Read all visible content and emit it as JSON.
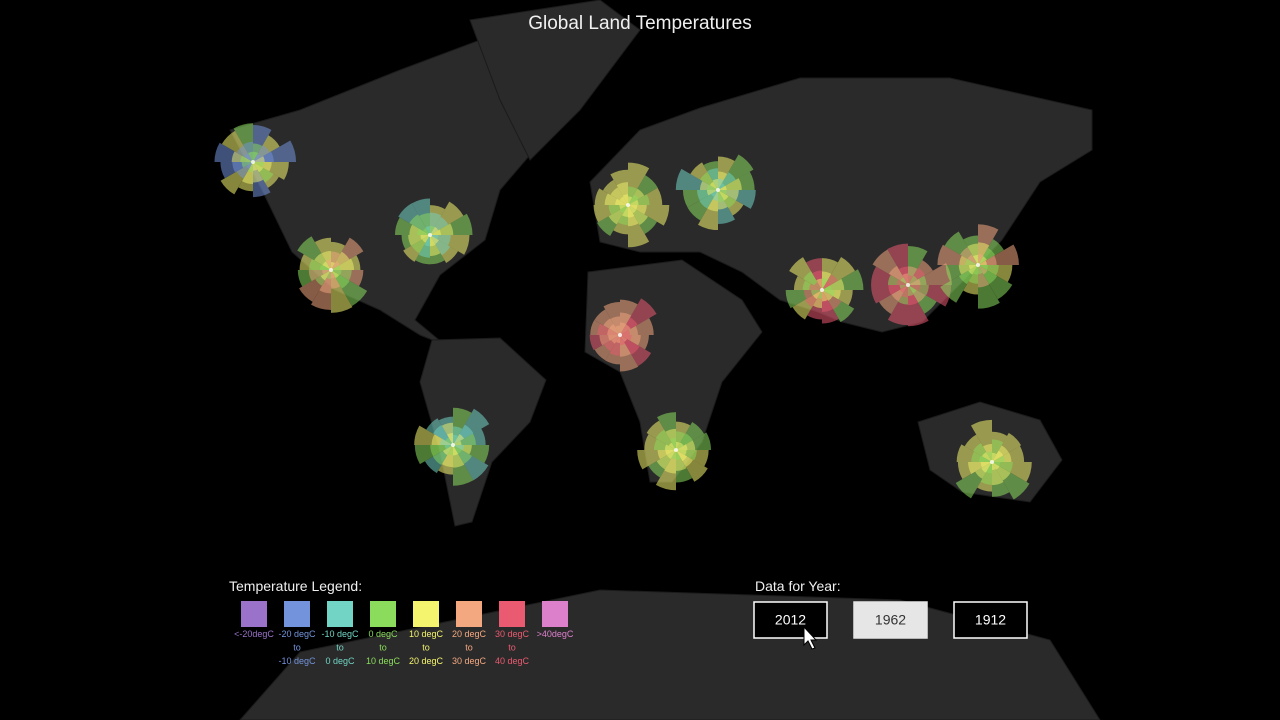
{
  "header": {
    "title": "Global Land Temperatures"
  },
  "legend": {
    "title": "Temperature Legend:",
    "items": [
      {
        "color": "#9a72c9",
        "lines": [
          "<-20degC"
        ]
      },
      {
        "color": "#7394dc",
        "lines": [
          "-20 degC",
          "to",
          "-10 degC"
        ]
      },
      {
        "color": "#72d4c4",
        "lines": [
          "-10 degC",
          "to",
          "0 degC"
        ]
      },
      {
        "color": "#8bdc5c",
        "lines": [
          "0 degC",
          "to",
          "10 degC"
        ]
      },
      {
        "color": "#f4f46e",
        "lines": [
          "10 degC",
          "to",
          "20 degC"
        ]
      },
      {
        "color": "#f4a880",
        "lines": [
          "20 degC",
          "to",
          "30 degC"
        ]
      },
      {
        "color": "#ea5a70",
        "lines": [
          "30 degC",
          "to",
          "40 degC"
        ]
      },
      {
        "color": "#dc80cc",
        "lines": [
          ">40degC"
        ]
      }
    ]
  },
  "year_selector": {
    "label": "Data for Year:",
    "buttons": [
      {
        "label": "2012",
        "selected": false
      },
      {
        "label": "1962",
        "selected": true
      },
      {
        "label": "1912",
        "selected": false
      }
    ]
  }
}
